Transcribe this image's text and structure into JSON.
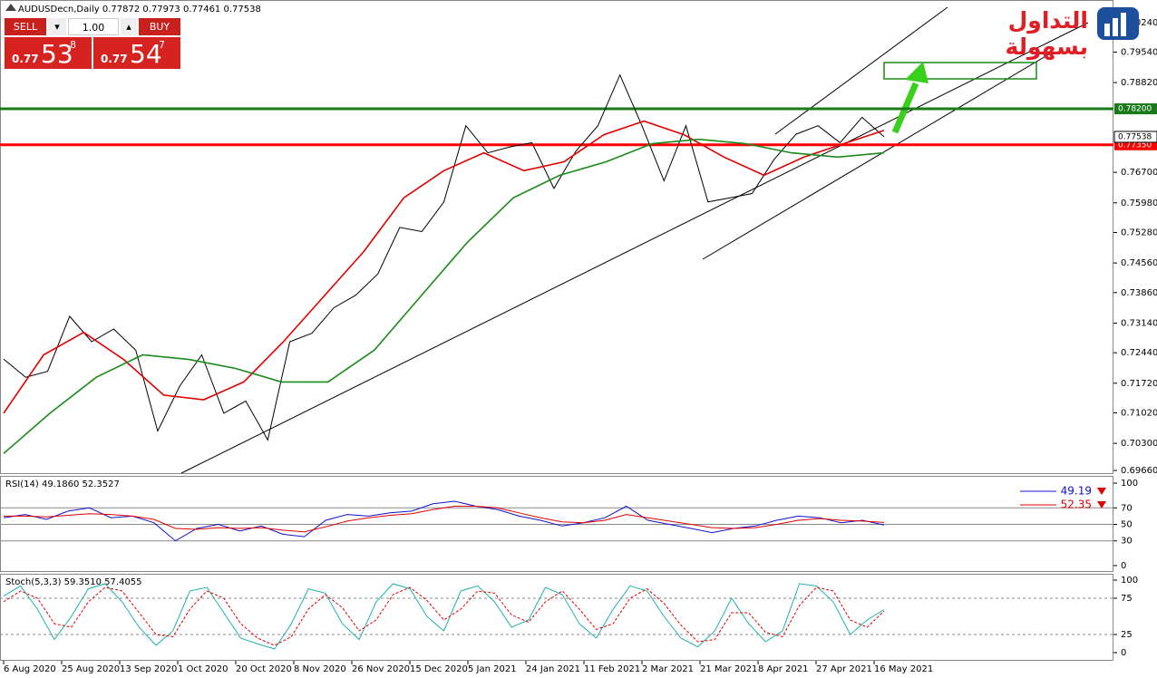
{
  "chart_data": [
    {
      "type": "line",
      "title": "AUDUSDecn,Daily  0.77872 0.77973 0.77461 0.77538",
      "ylim": [
        0.69596,
        0.8077
      ],
      "yticks": [
        {
          "value": 0.8024,
          "label": "0.80240"
        },
        {
          "value": 0.7954,
          "label": "0.79540"
        },
        {
          "value": 0.7882,
          "label": "0.78820"
        },
        {
          "value": 0.767,
          "label": "0.76700"
        },
        {
          "value": 0.7598,
          "label": "0.75980"
        },
        {
          "value": 0.7528,
          "label": "0.75280"
        },
        {
          "value": 0.7456,
          "label": "0.74560"
        },
        {
          "value": 0.7386,
          "label": "0.73860"
        },
        {
          "value": 0.7314,
          "label": "0.73140"
        },
        {
          "value": 0.7244,
          "label": "0.72440"
        },
        {
          "value": 0.7172,
          "label": "0.71720"
        },
        {
          "value": 0.7102,
          "label": "0.71020"
        },
        {
          "value": 0.703,
          "label": "0.70300"
        },
        {
          "value": 0.6966,
          "label": "0.69660"
        }
      ],
      "xticks": [
        "6 Aug 2020",
        "25 Aug 2020",
        "13 Sep 2020",
        "1 Oct 2020",
        "20 Oct 2020",
        "8 Nov 2020",
        "26 Nov 2020",
        "15 Dec 2020",
        "5 Jan 2021",
        "24 Jan 2021",
        "11 Feb 2021",
        "2 Mar 2021",
        "21 Mar 2021",
        "8 Apr 2021",
        "27 Apr 2021",
        "16 May 2021"
      ],
      "hlines": [
        {
          "value": 0.782,
          "label": "0.78200",
          "color": "#1a7a1a"
        },
        {
          "value": 0.7735,
          "label": "0.77350",
          "color": "#ff0000"
        }
      ],
      "current": {
        "value": 0.77538,
        "label": "0.77538"
      },
      "series": [
        {
          "color": "#000000",
          "values": [
            0.7229,
            0.7186,
            0.72,
            0.733,
            0.727,
            0.73,
            0.725,
            0.7059,
            0.7165,
            0.7239,
            0.7101,
            0.713,
            0.7038,
            0.727,
            0.729,
            0.735,
            0.738,
            0.743,
            0.754,
            0.753,
            0.76,
            0.778,
            0.7716,
            0.773,
            0.774,
            0.7632,
            0.772,
            0.778,
            0.79,
            0.778,
            0.765,
            0.778,
            0.76,
            0.761,
            0.762,
            0.77,
            0.776,
            0.778,
            0.774,
            0.78,
            0.7754
          ]
        },
        {
          "color": "#e00000",
          "values": [
            0.7101,
            0.7239,
            0.7292,
            0.7228,
            0.7144,
            0.7133,
            0.7175,
            0.7271,
            0.7377,
            0.7483,
            0.761,
            0.7674,
            0.7716,
            0.7674,
            0.7695,
            0.7759,
            0.7791,
            0.7759,
            0.7706,
            0.7663,
            0.7706,
            0.7738,
            0.7769
          ]
        },
        {
          "color": "#1a8a1a",
          "values": [
            0.7006,
            0.7101,
            0.7186,
            0.7239,
            0.7228,
            0.7207,
            0.7175,
            0.7175,
            0.725,
            0.7377,
            0.7504,
            0.761,
            0.7663,
            0.7695,
            0.7738,
            0.7748,
            0.7738,
            0.7716,
            0.7706,
            0.7716
          ]
        }
      ]
    },
    {
      "type": "line",
      "title": "RSI(14) 49.1860 52.3527",
      "ylim": [
        0,
        100
      ],
      "yticks": [
        100,
        70,
        50,
        30,
        0
      ],
      "grid": true,
      "series": [
        {
          "color": "#1010d0",
          "last": 49.19,
          "values": [
            58,
            62,
            56,
            66,
            70,
            58,
            60,
            52,
            30,
            45,
            50,
            42,
            48,
            38,
            35,
            55,
            62,
            60,
            64,
            66,
            75,
            78,
            72,
            68,
            60,
            55,
            48,
            52,
            58,
            72,
            55,
            50,
            45,
            40,
            45,
            48,
            55,
            60,
            58,
            52,
            55,
            49.19
          ]
        },
        {
          "color": "#e00000",
          "last": 52.35,
          "values": [
            60,
            60,
            59,
            61,
            63,
            62,
            60,
            56,
            45,
            44,
            46,
            45,
            46,
            43,
            41,
            47,
            54,
            58,
            61,
            63,
            68,
            72,
            72,
            70,
            64,
            58,
            53,
            52,
            55,
            62,
            58,
            54,
            50,
            46,
            45,
            46,
            50,
            55,
            57,
            55,
            54,
            52.35
          ]
        }
      ]
    },
    {
      "type": "line",
      "title": "Stoch(5,3,3) 59.3510 57.4055",
      "ylim": [
        0,
        100
      ],
      "yticks": [
        100,
        75,
        25,
        0
      ],
      "grid": true,
      "series": [
        {
          "color": "#20b2aa",
          "values": [
            78,
            92,
            60,
            18,
            50,
            88,
            95,
            70,
            35,
            10,
            30,
            85,
            90,
            55,
            20,
            12,
            5,
            40,
            88,
            82,
            40,
            18,
            70,
            95,
            88,
            50,
            30,
            85,
            92,
            70,
            35,
            45,
            90,
            80,
            40,
            20,
            60,
            92,
            85,
            50,
            20,
            8,
            30,
            75,
            40,
            15,
            30,
            95,
            92,
            70,
            25,
            45,
            59.35
          ]
        },
        {
          "color": "#e00000",
          "dashed": true,
          "values": [
            70,
            85,
            75,
            40,
            35,
            70,
            90,
            85,
            55,
            25,
            22,
            60,
            85,
            75,
            40,
            20,
            10,
            22,
            60,
            80,
            62,
            30,
            45,
            80,
            90,
            72,
            45,
            60,
            85,
            82,
            52,
            42,
            70,
            85,
            60,
            32,
            40,
            75,
            88,
            68,
            38,
            15,
            18,
            55,
            55,
            28,
            22,
            65,
            90,
            85,
            45,
            35,
            57.41
          ]
        }
      ]
    }
  ],
  "trade_panel": {
    "sell": "SELL",
    "buy": "BUY",
    "lot": "1.00",
    "sell_price": [
      "0.77",
      "53",
      "8"
    ],
    "buy_price": [
      "0.77",
      "54",
      "7"
    ]
  },
  "logo": {
    "text": "التداول بسهولة"
  }
}
